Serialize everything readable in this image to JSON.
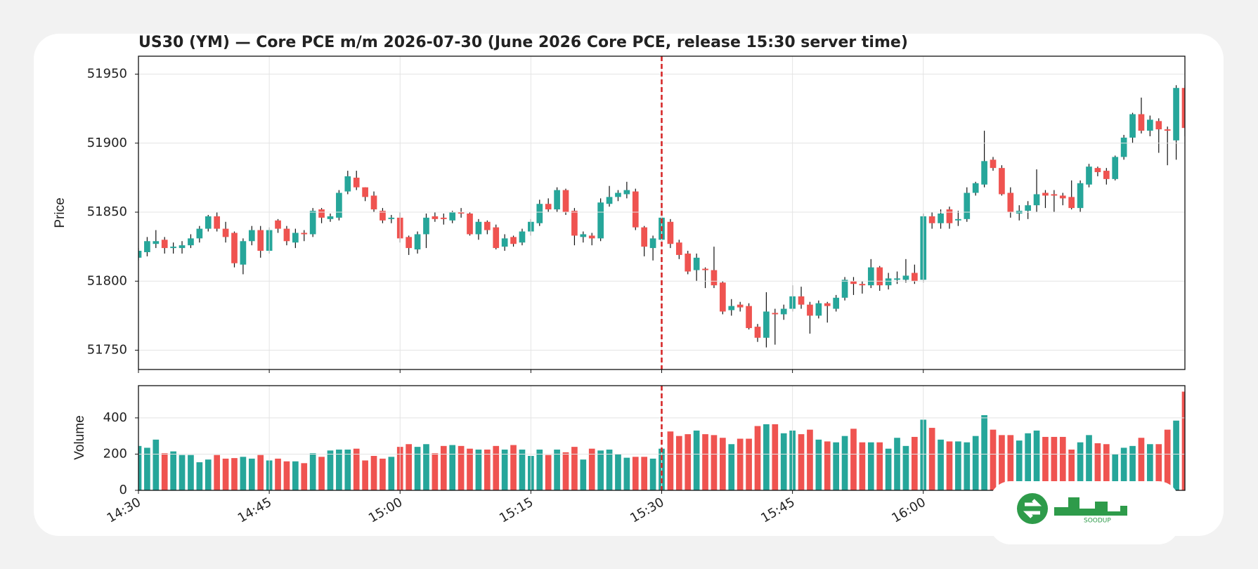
{
  "chart_data": {
    "type": "candlestick",
    "title": "US30 (YM) — Core PCE m/m 2026-07-30 (June 2026 Core PCE, release 15:30 server time)",
    "ylabel": "Price",
    "x": [
      "14:30",
      "14:31",
      "14:32",
      "14:33",
      "14:34",
      "14:35",
      "14:36",
      "14:37",
      "14:38",
      "14:39",
      "14:40",
      "14:41",
      "14:42",
      "14:43",
      "14:44",
      "14:45",
      "14:46",
      "14:47",
      "14:48",
      "14:49",
      "14:50",
      "14:51",
      "14:52",
      "14:53",
      "14:54",
      "14:55",
      "14:56",
      "14:57",
      "14:58",
      "14:59",
      "15:00",
      "15:01",
      "15:02",
      "15:03",
      "15:04",
      "15:05",
      "15:06",
      "15:07",
      "15:08",
      "15:09",
      "15:10",
      "15:11",
      "15:12",
      "15:13",
      "15:14",
      "15:15",
      "15:16",
      "15:17",
      "15:18",
      "15:19",
      "15:20",
      "15:21",
      "15:22",
      "15:23",
      "15:24",
      "15:25",
      "15:26",
      "15:27",
      "15:28",
      "15:29",
      "15:30",
      "15:31",
      "15:32",
      "15:33",
      "15:34",
      "15:35",
      "15:36",
      "15:37",
      "15:38",
      "15:39",
      "15:40",
      "15:41",
      "15:42",
      "15:43",
      "15:44",
      "15:45",
      "15:46",
      "15:47",
      "15:48",
      "15:49",
      "15:50",
      "15:51",
      "15:52",
      "15:53",
      "15:54",
      "15:55",
      "15:56",
      "15:57",
      "15:58",
      "15:59",
      "16:00",
      "16:01",
      "16:02",
      "16:03",
      "16:04",
      "16:05",
      "16:06",
      "16:07",
      "16:08",
      "16:09",
      "16:10",
      "16:11",
      "16:12",
      "16:13",
      "16:14",
      "16:15",
      "16:16",
      "16:17",
      "16:18",
      "16:19",
      "16:20",
      "16:21",
      "16:22",
      "16:23",
      "16:24",
      "16:25",
      "16:26",
      "16:27",
      "16:28",
      "16:29",
      "16:30"
    ],
    "xlim": [
      "14:30",
      "16:30"
    ],
    "xticks": [
      "14:30",
      "14:45",
      "15:00",
      "15:15",
      "15:30",
      "15:45",
      "16:00"
    ],
    "open": [
      51817,
      51821,
      51827,
      51830,
      51824,
      51824,
      51826,
      51831,
      51838,
      51847,
      51838,
      51835,
      51812,
      51829,
      51837,
      51822,
      51844,
      51838,
      51828,
      51835,
      51834,
      51852,
      51845,
      51846,
      51865,
      51875,
      51868,
      51862,
      51851,
      51845,
      51846,
      51832,
      51823,
      51834,
      51847,
      51846,
      51844,
      51850,
      51849,
      51834,
      51843,
      51839,
      51825,
      51832,
      51828,
      51836,
      51842,
      51856,
      51852,
      51866,
      51851,
      51832,
      51833,
      51831,
      51856,
      51861,
      51863,
      51865,
      51839,
      51824,
      51830,
      51843,
      51828,
      51820,
      51808,
      51809,
      51808,
      51799,
      51779,
      51783,
      51782,
      51767,
      51759,
      51777,
      51776,
      51780,
      51789,
      51783,
      51775,
      51784,
      51780,
      51788,
      51800,
      51798,
      51797,
      51810,
      51797,
      51801,
      51801,
      51806,
      51801,
      51847,
      51842,
      51852,
      51844,
      51845,
      51864,
      51870,
      51888,
      51882,
      51864,
      51849,
      51851,
      51855,
      51864,
      51863,
      51862,
      51861,
      51853,
      51870,
      51882,
      51880,
      51874,
      51890,
      51904,
      51921,
      51909,
      51916,
      51910,
      51902,
      51940
    ],
    "high": [
      51824,
      51832,
      51837,
      51832,
      51828,
      51829,
      51834,
      51840,
      51848,
      51850,
      51843,
      51836,
      51831,
      51840,
      51840,
      51839,
      51845,
      51840,
      51838,
      51837,
      51853,
      51853,
      51849,
      51866,
      51880,
      51880,
      51868,
      51865,
      51853,
      51848,
      51850,
      51833,
      51836,
      51849,
      51850,
      51849,
      51851,
      51853,
      51850,
      51845,
      51844,
      51841,
      51834,
      51833,
      51838,
      51845,
      51859,
      51860,
      51868,
      51867,
      51853,
      51836,
      51835,
      51860,
      51869,
      51866,
      51872,
      51867,
      51840,
      51833,
      51865,
      51845,
      51830,
      51822,
      51820,
      51810,
      51825,
      51800,
      51787,
      51785,
      51784,
      51769,
      51792,
      51780,
      51783,
      51797,
      51796,
      51785,
      51786,
      51785,
      51790,
      51803,
      51803,
      51800,
      51816,
      51811,
      51806,
      51807,
      51816,
      51812,
      51849,
      51850,
      51852,
      51854,
      51851,
      51868,
      51872,
      51909,
      51890,
      51884,
      51868,
      51855,
      51858,
      51881,
      51866,
      51866,
      51864,
      51873,
      51873,
      51885,
      51883,
      51882,
      51891,
      51906,
      51922,
      51933,
      51920,
      51918,
      51912,
      51942,
      51942
    ],
    "low": [
      51815,
      51818,
      51824,
      51820,
      51820,
      51820,
      51824,
      51828,
      51836,
      51836,
      51828,
      51810,
      51805,
      51826,
      51817,
      51820,
      51835,
      51826,
      51824,
      51829,
      51832,
      51842,
      51843,
      51844,
      51863,
      51866,
      51858,
      51850,
      51842,
      51842,
      51828,
      51819,
      51820,
      51824,
      51843,
      51841,
      51842,
      51846,
      51833,
      51830,
      51834,
      51823,
      51822,
      51825,
      51826,
      51833,
      51840,
      51850,
      51850,
      51848,
      51826,
      51828,
      51826,
      51829,
      51854,
      51858,
      51860,
      51837,
      51818,
      51815,
      51828,
      51824,
      51816,
      51805,
      51800,
      51795,
      51795,
      51776,
      51775,
      51778,
      51765,
      51756,
      51752,
      51754,
      51772,
      51778,
      51780,
      51762,
      51773,
      51770,
      51778,
      51786,
      51790,
      51791,
      51795,
      51793,
      51794,
      51798,
      51799,
      51798,
      51799,
      51838,
      51838,
      51838,
      51840,
      51843,
      51862,
      51868,
      51880,
      51862,
      51846,
      51844,
      51845,
      51850,
      51853,
      51850,
      51855,
      51852,
      51850,
      51868,
      51876,
      51870,
      51873,
      51888,
      51900,
      51907,
      51905,
      51893,
      51884,
      51888,
      51905
    ],
    "close": [
      51822,
      51829,
      51829,
      51824,
      51825,
      51826,
      51831,
      51838,
      51847,
      51838,
      51832,
      51813,
      51829,
      51837,
      51822,
      51837,
      51838,
      51829,
      51835,
      51834,
      51851,
      51846,
      51847,
      51864,
      51876,
      51868,
      51861,
      51852,
      51844,
      51846,
      51831,
      51824,
      51834,
      51846,
      51845,
      51845,
      51850,
      51849,
      51834,
      51843,
      51837,
      51824,
      51831,
      51827,
      51836,
      51843,
      51856,
      51852,
      51866,
      51850,
      51833,
      51834,
      51831,
      51857,
      51861,
      51864,
      51866,
      51839,
      51825,
      51831,
      51846,
      51827,
      51819,
      51807,
      51817,
      51808,
      51797,
      51778,
      51782,
      51781,
      51766,
      51759,
      51778,
      51776,
      51780,
      51789,
      51783,
      51775,
      51784,
      51782,
      51788,
      51801,
      51798,
      51797,
      51810,
      51797,
      51802,
      51802,
      51804,
      51800,
      51847,
      51842,
      51849,
      51842,
      51845,
      51864,
      51871,
      51887,
      51882,
      51863,
      51850,
      51851,
      51855,
      51863,
      51862,
      51862,
      51860,
      51853,
      51871,
      51883,
      51879,
      51874,
      51890,
      51904,
      51921,
      51909,
      51917,
      51910,
      51909,
      51940,
      51911
    ],
    "ylim": [
      51736,
      51963
    ],
    "yticks": [
      51750,
      51800,
      51850,
      51900,
      51950
    ],
    "up_color": "#26a69a",
    "down_color": "#ef5350",
    "grid": true,
    "event_line": {
      "x": "15:30",
      "color": "#d62728"
    },
    "volume": {
      "type": "bar",
      "ylabel": "Volume",
      "values": [
        245,
        235,
        280,
        205,
        215,
        195,
        195,
        155,
        170,
        195,
        175,
        178,
        185,
        175,
        195,
        165,
        175,
        160,
        160,
        150,
        205,
        185,
        220,
        225,
        225,
        230,
        165,
        190,
        175,
        185,
        240,
        255,
        240,
        255,
        205,
        245,
        250,
        245,
        230,
        225,
        225,
        245,
        225,
        250,
        225,
        190,
        225,
        195,
        225,
        210,
        240,
        170,
        230,
        220,
        225,
        200,
        180,
        185,
        185,
        175,
        230,
        325,
        300,
        310,
        330,
        310,
        305,
        290,
        255,
        285,
        285,
        355,
        365,
        365,
        315,
        330,
        310,
        335,
        280,
        270,
        265,
        300,
        340,
        265,
        265,
        265,
        230,
        290,
        245,
        295,
        390,
        345,
        280,
        270,
        270,
        265,
        300,
        415,
        335,
        305,
        305,
        275,
        315,
        330,
        295,
        295,
        295,
        225,
        265,
        305,
        260,
        255,
        200,
        235,
        245,
        290,
        255,
        255,
        335,
        385,
        545
      ],
      "ylim": [
        0,
        578
      ],
      "yticks": [
        0,
        200,
        400
      ]
    }
  },
  "logo": {
    "text": "SOODUP"
  }
}
